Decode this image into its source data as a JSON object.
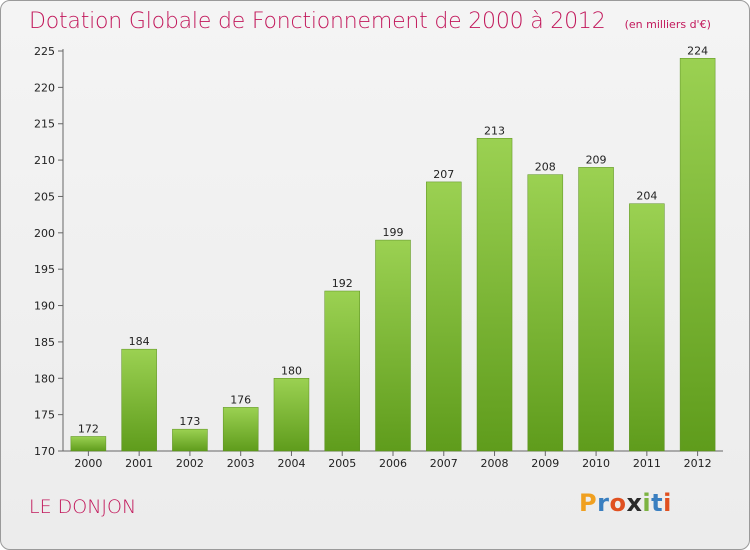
{
  "header": {
    "title": "Dotation Globale de Fonctionnement de 2000 à 2012",
    "subtitle": "(en milliers d'€)"
  },
  "footer": {
    "place": "LE DONJON",
    "brand_letters": [
      "P",
      "r",
      "o",
      "x",
      "i",
      "t",
      "i"
    ],
    "brand_colors": [
      "#f0a020",
      "#3a7fc0",
      "#e05020",
      "#2a2a2a",
      "#7cb342",
      "#3a7fc0",
      "#e05020"
    ]
  },
  "colors": {
    "accent": "#c2185b",
    "bar_top": "#9bd152",
    "bar_bottom": "#5f9c1c"
  },
  "chart_data": {
    "type": "bar",
    "title": "Dotation Globale de Fonctionnement de 2000 à 2012",
    "subtitle": "(en milliers d'€)",
    "xlabel": "",
    "ylabel": "",
    "categories": [
      "2000",
      "2001",
      "2002",
      "2003",
      "2004",
      "2005",
      "2006",
      "2007",
      "2008",
      "2009",
      "2010",
      "2011",
      "2012"
    ],
    "values": [
      172,
      184,
      173,
      176,
      180,
      192,
      199,
      207,
      213,
      208,
      209,
      204,
      224
    ],
    "ylim": [
      170,
      225
    ],
    "yticks": [
      "170",
      "175",
      "180",
      "185",
      "190",
      "195",
      "200",
      "205",
      "210",
      "215",
      "220",
      "225"
    ],
    "grid": false,
    "data_labels": true
  }
}
